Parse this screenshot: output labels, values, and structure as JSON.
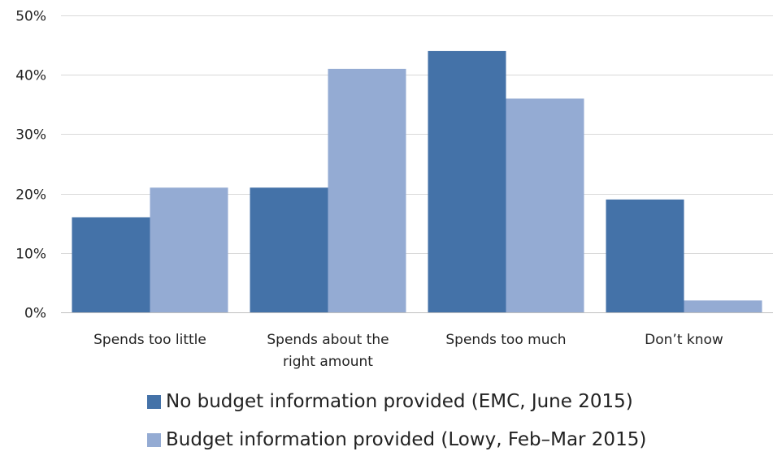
{
  "chart_data": {
    "type": "bar",
    "title": "",
    "xlabel": "",
    "ylabel": "",
    "categories": [
      [
        "Spends too little"
      ],
      [
        "Spends about the",
        "right amount"
      ],
      [
        "Spends too much"
      ],
      [
        "Don’t know"
      ]
    ],
    "series": [
      {
        "name": "No budget information provided (EMC, June 2015)",
        "color": "#4472a8",
        "values": [
          16,
          21,
          44,
          19
        ]
      },
      {
        "name": "Budget information provided (Lowy, Feb–Mar 2015)",
        "color": "#94abd3",
        "values": [
          21,
          41,
          36,
          2
        ]
      }
    ],
    "ylim": [
      0,
      50
    ],
    "yticks": [
      0,
      10,
      20,
      30,
      40,
      50
    ],
    "ytick_labels": [
      "0%",
      "10%",
      "20%",
      "30%",
      "40%",
      "50%"
    ],
    "grid": true,
    "legend_position": "bottom"
  }
}
